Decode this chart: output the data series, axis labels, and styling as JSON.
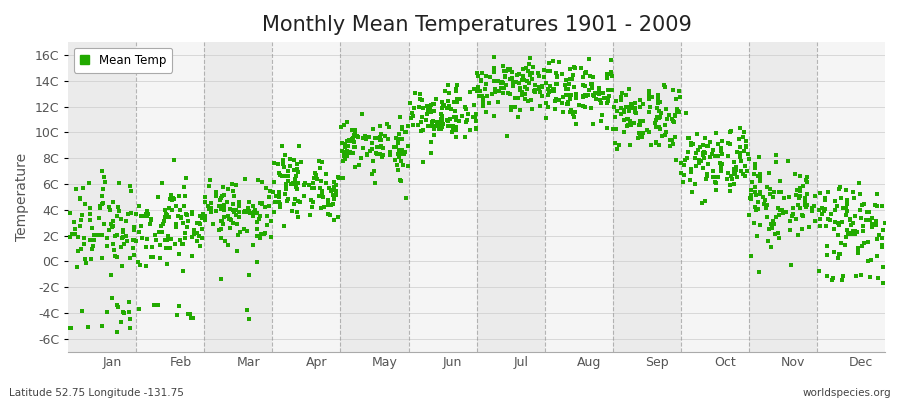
{
  "title": "Monthly Mean Temperatures 1901 - 2009",
  "ylabel": "Temperature",
  "bottom_left": "Latitude 52.75 Longitude -131.75",
  "bottom_right": "worldspecies.org",
  "legend_label": "Mean Temp",
  "dot_color": "#22AA00",
  "dot_size": 8,
  "ylim": [
    -7,
    17
  ],
  "yticks": [
    -6,
    -4,
    -2,
    0,
    2,
    4,
    6,
    8,
    10,
    12,
    14,
    16
  ],
  "ytick_labels": [
    "-6C",
    "-4C",
    "-2C",
    "0C",
    "2C",
    "4C",
    "6C",
    "8C",
    "10C",
    "12C",
    "14C",
    "16C"
  ],
  "month_names": [
    "Jan",
    "Feb",
    "Mar",
    "Apr",
    "May",
    "Jun",
    "Jul",
    "Aug",
    "Sep",
    "Oct",
    "Nov",
    "Dec"
  ],
  "monthly_mean": [
    2.5,
    2.8,
    3.8,
    5.8,
    9.0,
    11.2,
    13.5,
    13.2,
    11.2,
    7.8,
    4.5,
    2.8
  ],
  "monthly_std": [
    1.8,
    1.6,
    1.4,
    1.3,
    1.2,
    1.1,
    1.0,
    1.1,
    1.1,
    1.3,
    1.5,
    1.6
  ],
  "monthly_extra_low_prob": [
    0.15,
    0.08,
    0.03,
    0.0,
    0.0,
    0.0,
    0.0,
    0.0,
    0.0,
    0.0,
    0.02,
    0.05
  ],
  "monthly_extra_low_range": [
    [
      -5.5,
      -3.0
    ],
    [
      -4.5,
      -3.0
    ],
    [
      -4.5,
      -3.5
    ],
    [
      0,
      0
    ],
    [
      0,
      0
    ],
    [
      0,
      0
    ],
    [
      0,
      0
    ],
    [
      0,
      0
    ],
    [
      0,
      0
    ],
    [
      0,
      0
    ],
    [
      -1.0,
      -0.5
    ],
    [
      -1.5,
      -1.0
    ]
  ],
  "n_years": 109,
  "background_color": "#FFFFFF",
  "band_color_odd": "#EBEBEB",
  "band_color_even": "#F5F5F5",
  "grid_color": "#999999",
  "title_fontsize": 15,
  "label_fontsize": 10,
  "tick_fontsize": 9
}
